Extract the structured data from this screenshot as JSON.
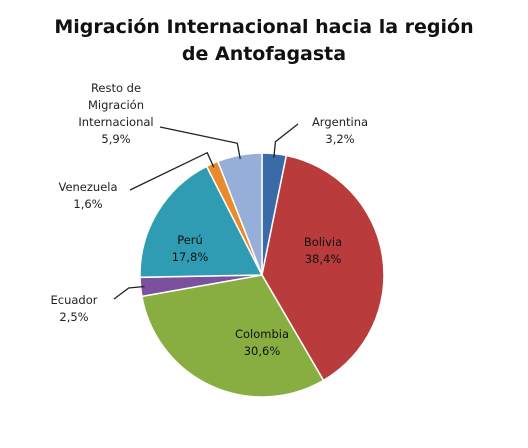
{
  "chart_data": {
    "type": "pie",
    "title": "Migración Internacional hacia la región de Antofagasta",
    "categories": [
      "Argentina",
      "Bolivia",
      "Colombia",
      "Ecuador",
      "Perú",
      "Venezuela",
      "Resto de Migración Internacional"
    ],
    "values": [
      3.2,
      38.4,
      30.6,
      2.5,
      17.8,
      1.6,
      5.9
    ],
    "value_labels": [
      "3,2%",
      "38,4%",
      "30,6%",
      "2,5%",
      "17,8%",
      "1,6%",
      "5,9%"
    ],
    "colors": [
      "#3b6aa8",
      "#b93b3b",
      "#88ae42",
      "#7b509c",
      "#2f9cb4",
      "#e98a2c",
      "#96afd8"
    ]
  }
}
